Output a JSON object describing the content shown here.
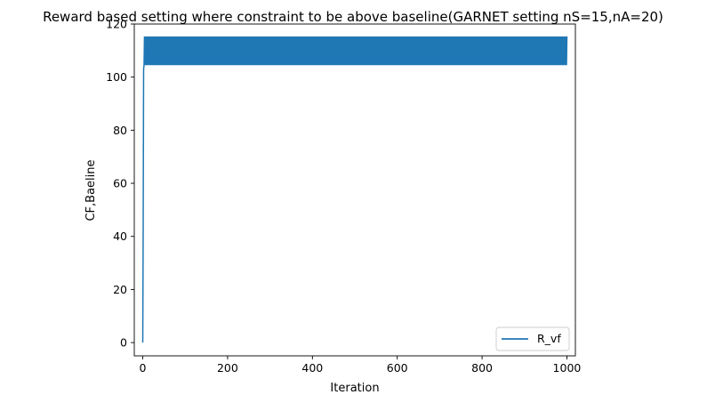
{
  "chart_data": {
    "type": "line",
    "title": "Reward based setting where constraint to be above baseline(GARNET setting nS=15,nA=20)",
    "xlabel": "Iteration",
    "ylabel": "CF,Baeline",
    "xlim": [
      -20,
      1020
    ],
    "ylim": [
      -5,
      120
    ],
    "xticks": [
      0,
      200,
      400,
      600,
      800,
      1000
    ],
    "yticks": [
      0,
      20,
      40,
      60,
      80,
      100,
      120
    ],
    "grid": false,
    "legend_position": "lower right",
    "series": [
      {
        "name": "R_vf",
        "color": "#1f77b4",
        "x_start": 0,
        "x_end": 1000,
        "initial_value": 0,
        "initial_rise": [
          [
            0,
            0
          ],
          [
            1,
            45
          ],
          [
            2,
            103
          ],
          [
            3,
            104.5
          ],
          [
            4,
            115.3
          ]
        ],
        "oscillation_low": 104.5,
        "oscillation_high": 115.3
      }
    ]
  }
}
